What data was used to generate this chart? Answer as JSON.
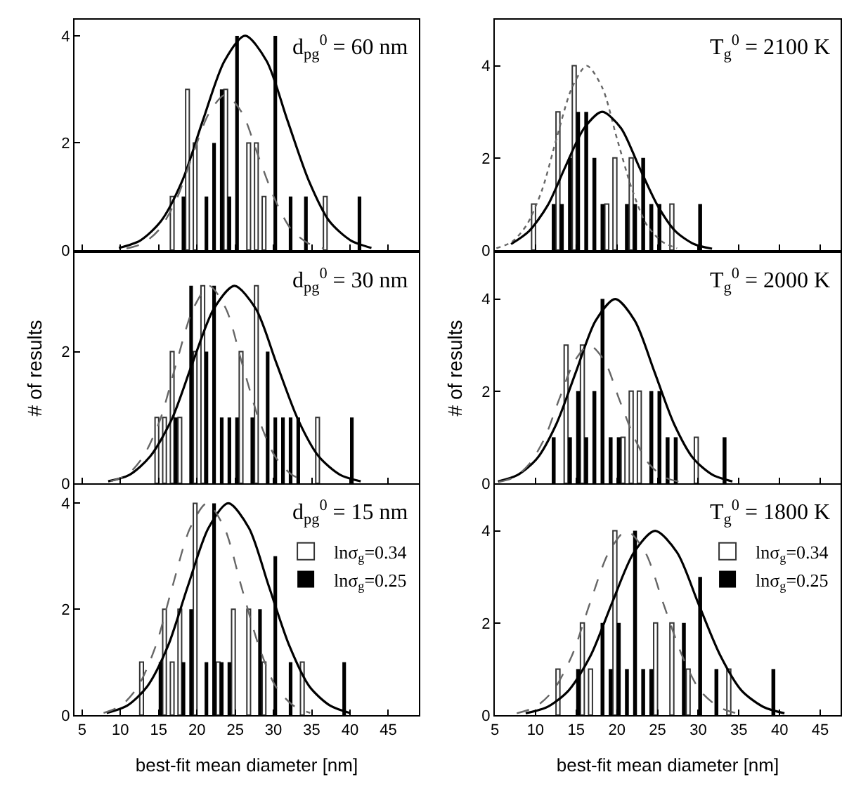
{
  "chart_data": [
    {
      "type": "bar",
      "annotations": [
        "d$_{pg}$$^{0}$ = 60 nm"
      ],
      "xlim": [
        4,
        49
      ],
      "xticks": [
        5,
        10,
        15,
        20,
        25,
        30,
        35,
        40,
        45
      ],
      "ylim": [
        0,
        4.3
      ],
      "yticks": [
        0,
        2,
        4
      ],
      "tick_labels": "y",
      "series": [
        {
          "type": "bar",
          "color": "#ffffff",
          "x": [
            17,
            19,
            20,
            24,
            27,
            28,
            29,
            37
          ],
          "values": [
            1,
            3,
            2,
            3,
            2,
            2,
            1,
            1
          ]
        },
        {
          "type": "bar",
          "color": "#000000",
          "x": [
            18,
            21,
            22,
            23,
            24,
            25,
            30,
            32,
            34,
            41
          ],
          "values": [
            1,
            1,
            2,
            3,
            1,
            4,
            4,
            1,
            1,
            1
          ]
        },
        {
          "type": "line",
          "color": "#000000",
          "line_style": "solid",
          "x": [
            9.8,
            12.6,
            15.3,
            18.1,
            20.8,
            23.6,
            26.3,
            29.1,
            31.8,
            34.6,
            37.3,
            40.1,
            42.8
          ],
          "values": [
            0.04,
            0.18,
            0.54,
            1.3,
            2.43,
            3.53,
            4,
            3.53,
            2.43,
            1.3,
            0.54,
            0.18,
            0.04
          ]
        },
        {
          "type": "line",
          "color": "#666666",
          "line_style": "dashed",
          "x": [
            10.8,
            13.0,
            15.1,
            17.3,
            19.4,
            21.6,
            23.7,
            25.9,
            28.0,
            30.2,
            32.3,
            34.5,
            36.6
          ],
          "values": [
            0.03,
            0.13,
            0.39,
            0.94,
            1.76,
            2.56,
            2.9,
            2.56,
            1.76,
            0.94,
            0.39,
            0.13,
            0.03
          ]
        }
      ]
    },
    {
      "type": "bar",
      "annotations": [
        "T$_{g}$$^{0}$ = 2100 K"
      ],
      "xlim": [
        5,
        47.5
      ],
      "xticks": [
        5,
        10,
        15,
        20,
        25,
        30,
        35,
        40,
        45
      ],
      "ylim": [
        0,
        5
      ],
      "yticks": [
        0,
        2,
        4
      ],
      "tick_labels": "y",
      "series": [
        {
          "type": "bar",
          "color": "#ffffff",
          "x": [
            10,
            13,
            15,
            19,
            20,
            22,
            27
          ],
          "values": [
            1,
            3,
            4,
            1,
            2,
            2,
            1
          ]
        },
        {
          "type": "bar",
          "color": "#000000",
          "x": [
            12,
            13,
            14,
            15,
            16,
            17,
            18,
            21,
            22,
            23,
            24,
            25,
            30
          ],
          "values": [
            1,
            1,
            2,
            3,
            3,
            2,
            1,
            1,
            1,
            2,
            1,
            1,
            1
          ]
        },
        {
          "type": "line",
          "color": "#666666",
          "line_style": "dotted",
          "x": [
            5.2,
            7.1,
            8.9,
            10.8,
            12.6,
            14.5,
            16.3,
            18.2,
            20.0,
            21.9,
            23.7,
            25.6,
            27.4
          ],
          "values": [
            0.04,
            0.18,
            0.54,
            1.3,
            2.43,
            3.53,
            4,
            3.53,
            2.43,
            1.3,
            0.54,
            0.18,
            0.04
          ]
        },
        {
          "type": "line",
          "color": "#000000",
          "line_style": "solid",
          "x": [
            7.0,
            9.2,
            11.5,
            13.7,
            16.0,
            18.2,
            20.5,
            22.7,
            25.0,
            27.2,
            29.5,
            31.7
          ],
          "values": [
            0.13,
            0.41,
            0.97,
            1.82,
            2.65,
            3,
            2.65,
            1.82,
            0.97,
            0.41,
            0.13,
            0.03
          ]
        }
      ]
    },
    {
      "type": "bar",
      "annotations": [
        "d$_{pg}$$^{0}$ = 30 nm"
      ],
      "ylabel": "# of results",
      "xlim": [
        4,
        49
      ],
      "xticks": [
        5,
        10,
        15,
        20,
        25,
        30,
        35,
        40,
        45
      ],
      "ylim": [
        0,
        3.5
      ],
      "yticks": [
        0,
        2
      ],
      "tick_labels": "y",
      "series": [
        {
          "type": "bar",
          "color": "#ffffff",
          "x": [
            15,
            16,
            17,
            18,
            20,
            21,
            26,
            28,
            36
          ],
          "values": [
            1,
            1,
            2,
            1,
            2,
            3,
            2,
            3,
            1
          ]
        },
        {
          "type": "bar",
          "color": "#000000",
          "x": [
            17,
            19,
            21,
            22,
            23,
            24,
            25,
            27,
            29,
            30,
            31,
            32,
            33,
            40
          ],
          "values": [
            1,
            3,
            2,
            3,
            1,
            1,
            1,
            1,
            2,
            1,
            1,
            1,
            1,
            1
          ]
        },
        {
          "type": "line",
          "color": "#000000",
          "line_style": "solid",
          "x": [
            8.4,
            11.2,
            13.9,
            16.7,
            19.4,
            22.2,
            24.9,
            27.7,
            30.4,
            33.2,
            35.9,
            38.7,
            41.4
          ],
          "values": [
            0.03,
            0.13,
            0.41,
            0.97,
            1.82,
            2.65,
            3,
            2.65,
            1.82,
            0.97,
            0.41,
            0.13,
            0.03
          ]
        },
        {
          "type": "line",
          "color": "#666666",
          "line_style": "dashed",
          "x": [
            8.7,
            10.9,
            13.0,
            15.2,
            17.3,
            19.5,
            21.6,
            23.8,
            25.9,
            28.1,
            30.2,
            32.4,
            34.5
          ],
          "values": [
            0.03,
            0.13,
            0.41,
            0.97,
            1.82,
            2.65,
            3,
            2.65,
            1.82,
            0.97,
            0.41,
            0.13,
            0.03
          ]
        }
      ]
    },
    {
      "type": "bar",
      "annotations": [
        "T$_{g}$$^{0}$ = 2000 K"
      ],
      "ylabel": "# of results",
      "xlim": [
        5,
        47.5
      ],
      "xticks": [
        5,
        10,
        15,
        20,
        25,
        30,
        35,
        40,
        45
      ],
      "ylim": [
        0,
        5
      ],
      "yticks": [
        0,
        2,
        4
      ],
      "tick_labels": "y",
      "series": [
        {
          "type": "bar",
          "color": "#ffffff",
          "x": [
            14,
            16,
            21,
            22,
            23,
            30
          ],
          "values": [
            3,
            3,
            1,
            2,
            2,
            1
          ]
        },
        {
          "type": "bar",
          "color": "#000000",
          "x": [
            12,
            14,
            15,
            16,
            17,
            18,
            19,
            20,
            24,
            25,
            26,
            27,
            33
          ],
          "values": [
            1,
            1,
            2,
            1,
            2,
            4,
            1,
            1,
            2,
            2,
            1,
            1,
            1
          ]
        },
        {
          "type": "line",
          "color": "#000000",
          "line_style": "solid",
          "x": [
            5.4,
            7.8,
            10.2,
            12.6,
            15.0,
            17.4,
            19.8,
            22.2,
            24.6,
            27.0,
            29.4,
            31.8,
            34.2
          ],
          "values": [
            0.04,
            0.18,
            0.54,
            1.3,
            2.43,
            3.53,
            4,
            3.53,
            2.43,
            1.3,
            0.54,
            0.18,
            0.04
          ]
        },
        {
          "type": "line",
          "color": "#666666",
          "line_style": "dashed",
          "x": [
            5.5,
            7.4,
            9.2,
            11.1,
            12.9,
            14.8,
            16.6,
            18.5,
            20.3,
            22.2,
            24.0,
            25.9,
            27.7
          ],
          "values": [
            0.03,
            0.13,
            0.41,
            0.97,
            1.82,
            2.65,
            3,
            2.65,
            1.82,
            0.97,
            0.41,
            0.13,
            0.03
          ]
        }
      ]
    },
    {
      "type": "bar",
      "annotations": [
        "d$_{pg}$$^{0}$ = 15 nm"
      ],
      "xlabel": "best-fit mean diameter [nm]",
      "xlim": [
        4,
        49
      ],
      "xticks": [
        5,
        10,
        15,
        20,
        25,
        30,
        35,
        40,
        45
      ],
      "ylim": [
        0,
        4.35
      ],
      "yticks": [
        0,
        2,
        4
      ],
      "legend": "right",
      "series": [
        {
          "type": "bar",
          "name": "lnσ$_{g}$=0.34",
          "color": "#ffffff",
          "x": [
            13,
            16,
            17,
            18,
            20,
            23,
            25,
            27,
            29,
            34
          ],
          "values": [
            1,
            2,
            1,
            2,
            4,
            1,
            2,
            2,
            1,
            1
          ]
        },
        {
          "type": "bar",
          "name": "lnσ$_{g}$=0.25",
          "color": "#000000",
          "x": [
            15,
            18,
            19,
            21,
            22,
            23,
            24,
            28,
            30,
            32,
            39
          ],
          "values": [
            1,
            1,
            2,
            1,
            4,
            1,
            1,
            2,
            3,
            1,
            1
          ]
        },
        {
          "type": "line",
          "color": "#000000",
          "line_style": "solid",
          "x": [
            8.2,
            10.9,
            13.5,
            16.2,
            18.8,
            21.5,
            24.1,
            26.8,
            29.4,
            32.1,
            34.7,
            37.4,
            40.0
          ],
          "values": [
            0.04,
            0.18,
            0.54,
            1.3,
            2.43,
            3.53,
            4,
            3.53,
            2.43,
            1.3,
            0.54,
            0.18,
            0.04
          ]
        },
        {
          "type": "line",
          "color": "#666666",
          "line_style": "dashed",
          "x": [
            7.8,
            10.1,
            12.3,
            14.6,
            16.8,
            19.1,
            21.3,
            23.6,
            25.8,
            28.1,
            30.3,
            32.6,
            34.8
          ],
          "values": [
            0.04,
            0.18,
            0.54,
            1.3,
            2.43,
            3.53,
            4,
            3.53,
            2.43,
            1.3,
            0.54,
            0.18,
            0.04
          ]
        }
      ]
    },
    {
      "type": "bar",
      "annotations": [
        "T$_{g}$$^{0}$ = 1800 K"
      ],
      "xlabel": "best-fit mean diameter [nm]",
      "xlim": [
        5,
        47.5
      ],
      "xticks": [
        5,
        10,
        15,
        20,
        25,
        30,
        35,
        40,
        45
      ],
      "ylim": [
        0,
        5
      ],
      "yticks": [
        0,
        2,
        4
      ],
      "legend": "right",
      "series": [
        {
          "type": "bar",
          "name": "lnσ$_{g}$=0.34",
          "color": "#ffffff",
          "x": [
            13,
            16,
            17,
            20,
            25,
            27,
            29,
            34
          ],
          "values": [
            1,
            2,
            1,
            4,
            2,
            2,
            1,
            1
          ]
        },
        {
          "type": "bar",
          "name": "lnσ$_{g}$=0.25",
          "color": "#000000",
          "x": [
            15,
            18,
            19,
            20,
            21,
            22,
            23,
            24,
            28,
            30,
            32,
            39
          ],
          "values": [
            1,
            2,
            1,
            2,
            1,
            4,
            1,
            1,
            2,
            3,
            1,
            1
          ]
        },
        {
          "type": "line",
          "color": "#000000",
          "line_style": "solid",
          "x": [
            8.8,
            11.5,
            14.1,
            16.8,
            19.4,
            22.1,
            24.7,
            27.4,
            30.0,
            32.7,
            35.3,
            38.0,
            40.6
          ],
          "values": [
            0.04,
            0.18,
            0.54,
            1.3,
            2.43,
            3.53,
            4,
            3.53,
            2.43,
            1.3,
            0.54,
            0.18,
            0.04
          ]
        },
        {
          "type": "line",
          "color": "#666666",
          "line_style": "dashed",
          "x": [
            7.7,
            10.0,
            12.2,
            14.5,
            16.7,
            19.0,
            21.2,
            23.5,
            25.7,
            28.0,
            30.2,
            32.5,
            34.7
          ],
          "values": [
            0.04,
            0.18,
            0.54,
            1.3,
            2.43,
            3.53,
            4,
            3.53,
            2.43,
            1.3,
            0.54,
            0.18,
            0.04
          ]
        }
      ]
    }
  ]
}
